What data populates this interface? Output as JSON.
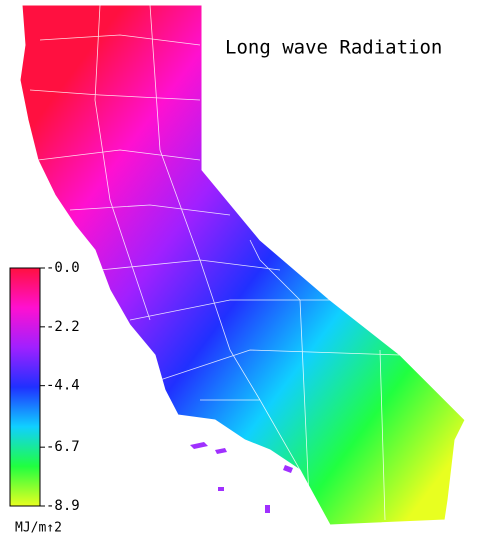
{
  "title": "Long wave Radiation",
  "colorbar": {
    "range": [
      0,
      -8.9
    ],
    "ticks": [
      {
        "value": 0,
        "label": "-0.0"
      },
      -2.2,
      -4.4,
      -6.7,
      -8.9
    ],
    "colors": [
      "#ff1040",
      "#ff10d0",
      "#a020ff",
      "#2030ff",
      "#10d0ff",
      "#20ff40",
      "#e8ff20"
    ],
    "unit": "MJ/m↑2"
  }
}
